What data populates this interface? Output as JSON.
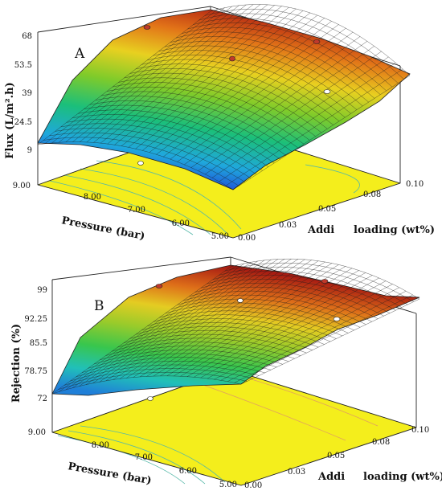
{
  "chart_data": [
    {
      "type": "surface",
      "panel_label": "A",
      "zlabel": "Flux (L/m².h)",
      "xlabel": "Pressure (bar)",
      "ylabel_parts": [
        "Addi",
        "loading (wt%)"
      ],
      "z_ticks": [
        "68",
        "53.5",
        "39",
        "24.5",
        "9"
      ],
      "zlim": [
        9,
        68
      ],
      "x_ticks": [
        "9.00",
        "8.00",
        "7.00",
        "6.00",
        "5.00"
      ],
      "xlim": [
        9,
        5
      ],
      "y_ticks": [
        "0.00",
        "0.03",
        "0.05",
        "0.08",
        "0.10"
      ],
      "ylim": [
        0,
        0.1
      ],
      "surface_corners": {
        "pressure_9_loading_0": 16,
        "pressure_5_loading_0": 62,
        "pressure_9_loading_0.1": 24,
        "pressure_5_loading_0.1": 58
      },
      "design_points": [
        {
          "pressure": 6.2,
          "loading": 0.03,
          "flux": 68
        },
        {
          "pressure": 6.5,
          "loading": 0.05,
          "flux": 58
        },
        {
          "pressure": 6.0,
          "loading": 0.08,
          "flux": 62
        },
        {
          "pressure": 7.5,
          "loading": 0.08,
          "flux": 45
        },
        {
          "pressure": 8.8,
          "loading": 0.02,
          "flux": 12
        }
      ]
    },
    {
      "type": "surface",
      "panel_label": "B",
      "zlabel": "Rejection (%)",
      "xlabel": "Pressure (bar)",
      "ylabel_parts": [
        "Addi",
        "loading (wt%)"
      ],
      "z_ticks": [
        "99",
        "92.25",
        "85.5",
        "78.75",
        "72"
      ],
      "zlim": [
        72,
        99
      ],
      "x_ticks": [
        "9.00",
        "8.00",
        "7.00",
        "6.00",
        "5.00"
      ],
      "xlim": [
        9,
        5
      ],
      "y_ticks": [
        "0.00",
        "0.03",
        "0.05",
        "0.08",
        "0.10"
      ],
      "ylim": [
        0,
        0.1
      ],
      "surface_corners": {
        "pressure_9_loading_0": 74,
        "pressure_5_loading_0": 97,
        "pressure_9_loading_0.1": 83,
        "pressure_5_loading_0.1": 95
      },
      "design_points": [
        {
          "pressure": 8.5,
          "loading": 0.005,
          "rejection": 97
        },
        {
          "pressure": 6.0,
          "loading": 0.06,
          "rejection": 97
        },
        {
          "pressure": 7.0,
          "loading": 0.05,
          "rejection": 93
        },
        {
          "pressure": 7.5,
          "loading": 0.09,
          "rejection": 88
        },
        {
          "pressure": 8.5,
          "loading": 0.04,
          "rejection": 74
        }
      ]
    }
  ]
}
